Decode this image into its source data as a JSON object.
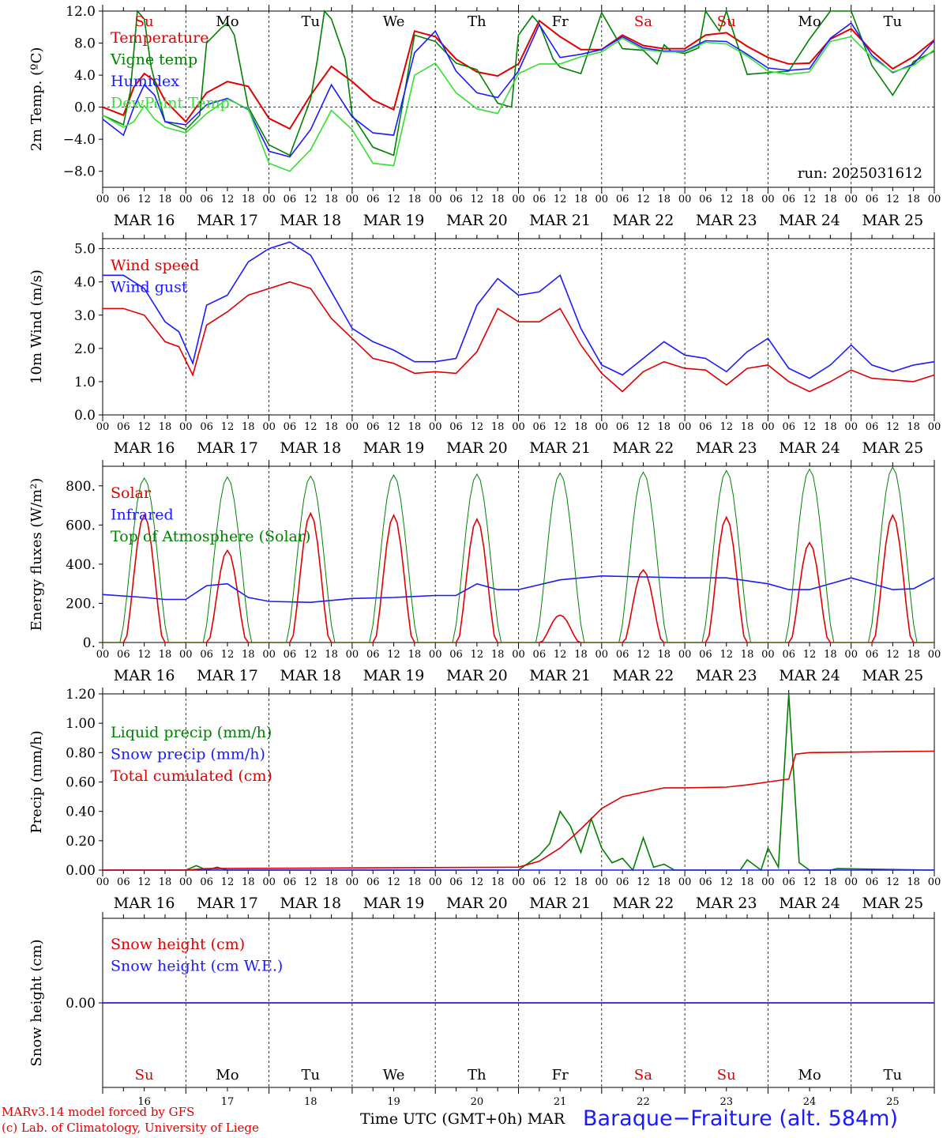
{
  "days": {
    "dates": [
      "MAR 16",
      "MAR 17",
      "MAR 18",
      "MAR 19",
      "MAR 20",
      "MAR 21",
      "MAR 22",
      "MAR 23",
      "MAR 24",
      "MAR 25"
    ],
    "weekdays": [
      "Su",
      "Mo",
      "Tu",
      "We",
      "Th",
      "Fr",
      "Sa",
      "Su",
      "Mo",
      "Tu"
    ],
    "weekday_colors": [
      "#e00000",
      "#000000",
      "#000000",
      "#000000",
      "#000000",
      "#000000",
      "#e00000",
      "#e00000",
      "#000000",
      "#000000"
    ],
    "hour_ticks": [
      "00",
      "06",
      "12",
      "18"
    ],
    "last_tick": "00",
    "day_numbers": [
      "16",
      "17",
      "18",
      "19",
      "20",
      "21",
      "22",
      "23",
      "24",
      "25"
    ]
  },
  "footer": {
    "model": "MARv3.14 model forced by GFS",
    "credit": "(c) Lab. of Climatology, University of Liege",
    "axis_title": "Time UTC (GMT+0h) MAR",
    "station": "Baraque−Fraiture (alt. 584m)"
  },
  "chart_data": [
    {
      "type": "line",
      "ylabel": "2m Temp. (ºC)",
      "ylim": [
        -10,
        12
      ],
      "yticks": [
        -8,
        -4,
        0,
        4,
        8,
        12
      ],
      "ytick_labels": [
        "−8.0",
        "−4.0",
        "0.0",
        "4.0",
        "8.0",
        "12.0"
      ],
      "dashed_y": [
        0
      ],
      "annotation": "run: 2025031612",
      "x_unit": "hours since MAR 16 00 UTC",
      "series": [
        {
          "name": "Temperature",
          "color": "#e00000",
          "x": [
            0,
            6,
            9,
            12,
            15,
            18,
            24,
            30,
            36,
            42,
            48,
            54,
            60,
            66,
            72,
            78,
            84,
            90,
            96,
            102,
            108,
            114,
            120,
            126,
            132,
            138,
            144,
            150,
            156,
            162,
            168,
            174,
            180,
            186,
            192,
            198,
            204,
            210,
            216,
            222,
            228,
            234,
            240
          ],
          "y": [
            0,
            -1,
            2.5,
            4.2,
            3.3,
            0.8,
            -1.8,
            1.8,
            3.2,
            2.6,
            -1.4,
            -2.7,
            1.5,
            5.1,
            3.2,
            0.9,
            -0.3,
            9.5,
            8.8,
            6,
            4.4,
            3.9,
            5.4,
            10.8,
            8.8,
            7.2,
            7.2,
            9,
            7.7,
            7.3,
            7.3,
            9,
            9.3,
            7.6,
            6.2,
            5.4,
            5.5,
            8.5,
            9.8,
            7,
            4.8,
            6.3,
            8.4
          ]
        },
        {
          "name": "Vigne temp",
          "color": "#008000",
          "x": [
            0,
            6,
            8,
            10,
            12,
            14,
            18,
            24,
            28,
            30,
            34,
            36,
            38,
            42,
            48,
            54,
            60,
            62,
            64,
            66,
            70,
            72,
            78,
            84,
            90,
            96,
            102,
            108,
            114,
            118,
            120,
            124,
            126,
            130,
            132,
            138,
            144,
            150,
            156,
            160,
            162,
            164,
            168,
            172,
            174,
            178,
            180,
            186,
            192,
            198,
            204,
            210,
            216,
            222,
            228,
            234,
            240
          ],
          "y": [
            -1,
            -2.2,
            2,
            12,
            11,
            5,
            -1.8,
            -2.8,
            -1,
            8,
            9.8,
            10.5,
            9,
            0,
            -4.7,
            -6,
            1,
            6,
            12,
            11,
            6,
            -1,
            -5,
            -6,
            9,
            8.2,
            5.5,
            4.7,
            0.5,
            0,
            9,
            11.4,
            10.4,
            6,
            5,
            4.2,
            11.8,
            7.3,
            7.1,
            5.4,
            7.8,
            7,
            6.7,
            7.4,
            12,
            9.5,
            12,
            4.1,
            4.3,
            4.5,
            8.5,
            12,
            12,
            5.2,
            1.5,
            5.7,
            7
          ]
        },
        {
          "name": "Humidex",
          "color": "#1a1aff",
          "x": [
            0,
            6,
            9,
            12,
            15,
            18,
            24,
            30,
            36,
            42,
            48,
            54,
            60,
            66,
            72,
            78,
            84,
            90,
            96,
            102,
            108,
            114,
            120,
            126,
            132,
            138,
            144,
            150,
            156,
            162,
            168,
            174,
            180,
            186,
            192,
            198,
            204,
            210,
            216,
            222,
            228,
            234,
            240
          ],
          "y": [
            -1.5,
            -3.5,
            0,
            2.8,
            1.5,
            -1.8,
            -2.2,
            0.3,
            1.1,
            -0.3,
            -5.5,
            -6.2,
            -2.8,
            2.8,
            -1.2,
            -3.2,
            -3.5,
            6.8,
            9.5,
            4.5,
            1.8,
            1.2,
            4.5,
            10.3,
            6.2,
            6.6,
            7.2,
            8.8,
            7.4,
            7,
            7,
            8.3,
            8.2,
            6.6,
            4.9,
            4.6,
            4.8,
            8.6,
            10.5,
            6.5,
            4.3,
            5.4,
            8.3
          ]
        },
        {
          "name": "DewPoint Temp",
          "color": "#33e033",
          "x": [
            0,
            6,
            9,
            12,
            15,
            18,
            24,
            30,
            36,
            42,
            48,
            54,
            60,
            66,
            72,
            78,
            84,
            90,
            96,
            102,
            108,
            114,
            120,
            126,
            132,
            138,
            144,
            150,
            156,
            162,
            168,
            174,
            180,
            186,
            192,
            198,
            204,
            210,
            216,
            222,
            228,
            234,
            240
          ],
          "y": [
            -1,
            -2.5,
            -1.8,
            0.2,
            -1.5,
            -2.5,
            -3.2,
            -0.8,
            1,
            -0.2,
            -7,
            -8,
            -5.3,
            -0.4,
            -2.8,
            -7,
            -7.3,
            4,
            5.5,
            1.8,
            -0.2,
            -0.8,
            4.2,
            5.4,
            5.4,
            6.3,
            6.9,
            8.6,
            7.2,
            6.9,
            6.9,
            8.1,
            7.9,
            6.4,
            4.5,
            4.1,
            4.4,
            8.2,
            8.8,
            6.2,
            4.4,
            5.2,
            7.2
          ]
        }
      ]
    },
    {
      "type": "line",
      "ylabel": "10m Wind (m/s)",
      "ylim": [
        0,
        5.3
      ],
      "yticks": [
        0,
        1,
        2,
        3,
        4,
        5
      ],
      "ytick_labels": [
        "0.0",
        "1.0",
        "2.0",
        "3.0",
        "4.0",
        "5.0"
      ],
      "dashed_y": [
        5
      ],
      "x_unit": "hours since MAR 16 00 UTC",
      "series": [
        {
          "name": "Wind speed",
          "color": "#e00000",
          "x": [
            0,
            6,
            12,
            18,
            22,
            26,
            30,
            36,
            42,
            48,
            54,
            60,
            66,
            72,
            78,
            84,
            90,
            96,
            102,
            108,
            114,
            120,
            126,
            132,
            138,
            144,
            150,
            156,
            162,
            168,
            174,
            180,
            186,
            192,
            198,
            204,
            210,
            216,
            222,
            228,
            234,
            240
          ],
          "y": [
            3.2,
            3.2,
            3,
            2.2,
            2.05,
            1.2,
            2.7,
            3.1,
            3.6,
            3.8,
            4,
            3.8,
            2.9,
            2.3,
            1.7,
            1.55,
            1.25,
            1.3,
            1.25,
            1.9,
            3.2,
            2.8,
            2.8,
            3.2,
            2.1,
            1.25,
            0.7,
            1.3,
            1.6,
            1.4,
            1.35,
            0.9,
            1.4,
            1.5,
            1,
            0.7,
            1,
            1.35,
            1.1,
            1.05,
            1,
            1.2
          ]
        },
        {
          "name": "Wind gust",
          "color": "#1a1aff",
          "x": [
            0,
            6,
            12,
            18,
            22,
            26,
            30,
            36,
            42,
            48,
            54,
            60,
            66,
            72,
            78,
            84,
            90,
            96,
            102,
            108,
            114,
            120,
            126,
            132,
            138,
            144,
            150,
            156,
            162,
            168,
            174,
            180,
            186,
            192,
            198,
            204,
            210,
            216,
            222,
            228,
            234,
            240
          ],
          "y": [
            4.2,
            4.2,
            3.8,
            2.8,
            2.5,
            1.55,
            3.3,
            3.6,
            4.6,
            5,
            5.2,
            4.8,
            3.7,
            2.6,
            2.2,
            1.95,
            1.6,
            1.6,
            1.7,
            3.3,
            4.1,
            3.6,
            3.7,
            4.2,
            2.6,
            1.5,
            1.2,
            1.7,
            2.2,
            1.8,
            1.7,
            1.3,
            1.9,
            2.3,
            1.4,
            1.1,
            1.5,
            2.1,
            1.5,
            1.3,
            1.5,
            1.6
          ]
        }
      ]
    },
    {
      "type": "line",
      "ylabel": "Energy fluxes (W/m²)",
      "ylim": [
        0,
        900
      ],
      "yticks": [
        0,
        200,
        400,
        600,
        800
      ],
      "ytick_labels": [
        "0.",
        "200.",
        "400.",
        "600.",
        "800."
      ],
      "x_unit": "hours since MAR 16 00 UTC",
      "series": [
        {
          "name": "Solar",
          "color": "#e00000",
          "daily_peak": [
            650,
            470,
            660,
            650,
            630,
            140,
            370,
            640,
            510,
            650
          ]
        },
        {
          "name": "Infrared",
          "color": "#1a1aff",
          "x": [
            0,
            12,
            18,
            24,
            30,
            36,
            42,
            48,
            60,
            72,
            84,
            96,
            102,
            108,
            114,
            120,
            132,
            144,
            156,
            168,
            180,
            192,
            198,
            204,
            216,
            228,
            234,
            240
          ],
          "y": [
            245,
            230,
            220,
            220,
            290,
            300,
            230,
            210,
            205,
            225,
            230,
            240,
            240,
            300,
            270,
            270,
            320,
            340,
            335,
            330,
            330,
            300,
            270,
            270,
            330,
            270,
            275,
            330
          ]
        },
        {
          "name": "Top of Atmosphere (Solar)",
          "color": "#008000",
          "daily_peak": [
            840,
            845,
            850,
            855,
            860,
            865,
            870,
            878,
            885,
            895
          ]
        }
      ]
    },
    {
      "type": "line",
      "ylabel": "Precip (mm/h)",
      "ylim": [
        0,
        1.2
      ],
      "yticks": [
        0,
        0.2,
        0.4,
        0.6,
        0.8,
        1.0,
        1.2
      ],
      "ytick_labels": [
        "0.00",
        "0.20",
        "0.40",
        "0.60",
        "0.80",
        "1.00",
        "1.20"
      ],
      "x_unit": "hours since MAR 16 00 UTC",
      "series": [
        {
          "name": "Liquid precip (mm/h)",
          "color": "#008000",
          "x": [
            0,
            24,
            27,
            30,
            33,
            36,
            120,
            123,
            126,
            129,
            132,
            135,
            138,
            141,
            144,
            147,
            150,
            153,
            156,
            159,
            162,
            165,
            168,
            180,
            184,
            186,
            190,
            192,
            195,
            198,
            201,
            204,
            206,
            208,
            210,
            212,
            240
          ],
          "y": [
            0,
            0,
            0.03,
            0,
            0.02,
            0,
            0,
            0.05,
            0.1,
            0.18,
            0.4,
            0.3,
            0.12,
            0.35,
            0.15,
            0.05,
            0.08,
            0,
            0.22,
            0.02,
            0.04,
            0,
            0,
            0,
            0,
            0.07,
            0,
            0.15,
            0.02,
            1.2,
            0.05,
            0,
            0,
            0,
            0,
            0.01,
            0
          ]
        },
        {
          "name": "Snow precip (mm/h)",
          "color": "#1a1aff",
          "x": [
            0,
            240
          ],
          "y": [
            0,
            0
          ]
        },
        {
          "name": "Total cumulated (cm)",
          "color": "#e00000",
          "x": [
            0,
            24,
            30,
            120,
            126,
            132,
            138,
            144,
            150,
            156,
            162,
            168,
            180,
            186,
            192,
            198,
            200,
            204,
            240
          ],
          "y": [
            0,
            0,
            0.01,
            0.02,
            0.06,
            0.15,
            0.28,
            0.42,
            0.5,
            0.53,
            0.56,
            0.56,
            0.565,
            0.58,
            0.6,
            0.62,
            0.79,
            0.8,
            0.81
          ]
        }
      ]
    },
    {
      "type": "line",
      "ylabel": "Snow height (cm)",
      "ylim": [
        -1,
        1
      ],
      "yticks": [
        0
      ],
      "ytick_labels": [
        "0.00"
      ],
      "x_unit": "hours since MAR 16 00 UTC",
      "series": [
        {
          "name": "Snow height (cm)",
          "color": "#e00000",
          "x": [
            0,
            240
          ],
          "y": [
            0,
            0
          ]
        },
        {
          "name": "Snow height (cm W.E.)",
          "color": "#1a1aff",
          "x": [
            0,
            240
          ],
          "y": [
            0,
            0
          ]
        }
      ]
    }
  ]
}
